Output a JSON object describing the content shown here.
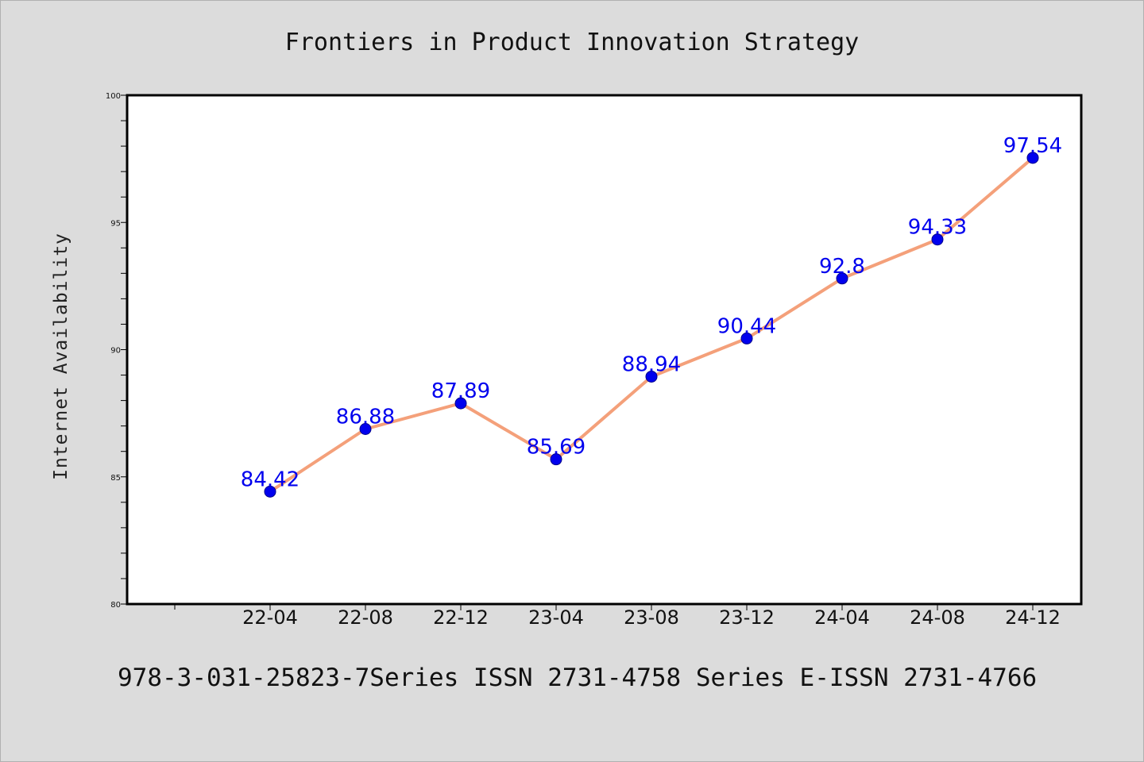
{
  "page": {
    "footer": "978-3-031-25823-7Series ISSN 2731-4758 Series E-ISSN 2731-4766"
  },
  "chart_data": {
    "type": "line",
    "title": "Frontiers in Product Innovation Strategy",
    "xlabel": "",
    "ylabel": "Internet Availability",
    "categories": [
      "22-04",
      "22-08",
      "22-12",
      "23-04",
      "23-08",
      "23-12",
      "24-04",
      "24-08",
      "24-12"
    ],
    "series": [
      {
        "values": [
          84.42,
          86.88,
          87.89,
          85.69,
          88.94,
          90.44,
          92.8,
          94.33,
          97.54
        ],
        "labels": [
          "84.42",
          "86.88",
          "87.89",
          "85.69",
          "88.94",
          "90.44",
          "92.8",
          "94.33",
          "97.54"
        ],
        "line_color": "#f4a07a",
        "marker_color": "#0000ee",
        "label_color": "#0000ee"
      }
    ],
    "ylim": [
      80,
      100
    ],
    "yticks": [
      "80",
      "85",
      "90",
      "95",
      "100"
    ],
    "grid": false,
    "legend": "none"
  }
}
